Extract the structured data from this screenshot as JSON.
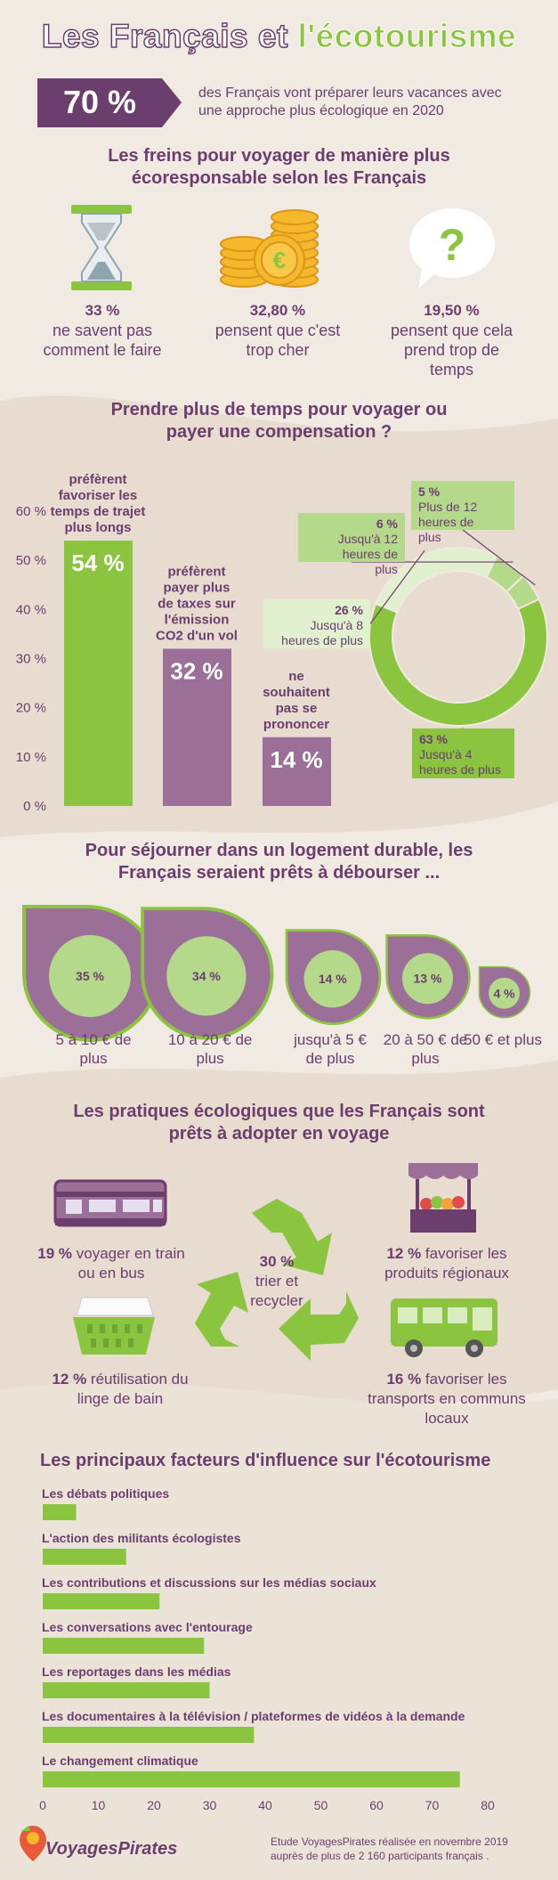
{
  "header": {
    "title_part1": "Les Français et ",
    "title_part2": "l'écotourisme",
    "stat_value": "70 %",
    "stat_text": "des Français vont préparer leurs vacances avec une approche plus écologique en 2020"
  },
  "brakes": {
    "title": "Les freins pour voyager de manière plus écoresponsable selon les Français",
    "items": [
      {
        "value": "33 %",
        "text": "ne savent pas comment le faire",
        "icon": "hourglass-icon"
      },
      {
        "value": "32,80 %",
        "text": "pensent que c'est trop cher",
        "icon": "coins-icon"
      },
      {
        "value": "19,50 %",
        "text": "pensent que cela prend trop de temps",
        "icon": "question-bubble-icon"
      }
    ]
  },
  "time": {
    "title": "Prendre plus de temps pour voyager ou payer une compensation ?"
  },
  "housing": {
    "title": "Pour séjourner dans un logement durable, les Français seraient prêts à débourser ...",
    "items": [
      {
        "value": "35 %",
        "label": "5 à 10 € de plus"
      },
      {
        "value": "34 %",
        "label": "10 à 20 € de plus"
      },
      {
        "value": "14 %",
        "label": "jusqu'à 5 € de plus"
      },
      {
        "value": "13 %",
        "label": "20 à 50 € de plus"
      },
      {
        "value": "4 %",
        "label": "50 € et plus"
      }
    ]
  },
  "practices": {
    "title": "Les pratiques écologiques que les Français sont prêts à adopter en voyage",
    "items": [
      {
        "value": "19 %",
        "text": " voyager en train ou en bus",
        "icon": "train-icon"
      },
      {
        "value": "12 %",
        "text": " favoriser les produits régionaux",
        "icon": "market-stall-icon"
      },
      {
        "value": "30 %",
        "text": "trier et recycler",
        "icon": "recycle-icon"
      },
      {
        "value": "12 %",
        "text": " réutilisation du linge de bain",
        "icon": "laundry-basket-icon"
      },
      {
        "value": "16 %",
        "text": " favoriser les transports en communs locaux",
        "icon": "bus-icon"
      }
    ]
  },
  "influence": {
    "title": "Les principaux facteurs d'influence sur l'écotourisme"
  },
  "footer": {
    "brand": "VoyagesPirates",
    "note": "Etude VoyagesPirates réalisée en novembre 2019 auprès de plus de 2 160 participants français ."
  },
  "colors": {
    "purple": "#6b3e6e",
    "purple_light": "#9c6f98",
    "green": "#8bc53f",
    "green_light": "#b4d98a",
    "green_pale": "#e1f0cf",
    "background": "#f1eae2"
  },
  "chart_data": [
    {
      "type": "bar",
      "categories": [
        "préfèrent favoriser les temps de trajet plus longs",
        "préfèrent payer plus de taxes sur l'émission CO2 d'un vol",
        "ne souhaitent pas se prononcer"
      ],
      "values": [
        54,
        32,
        14
      ],
      "value_labels": [
        "54 %",
        "32 %",
        "14 %"
      ],
      "ylim": [
        0,
        60
      ],
      "yticks": [
        "0 %",
        "10 %",
        "20 %",
        "30 %",
        "40 %",
        "50 %",
        "60 %"
      ]
    },
    {
      "type": "pie",
      "variant": "donut",
      "slices": [
        {
          "value": 63,
          "pct": "63 %",
          "label": "Jusqu'à 4 heures de plus"
        },
        {
          "value": 26,
          "pct": "26 %",
          "label": "Jusqu'à 8 heures de plus"
        },
        {
          "value": 6,
          "pct": "6 %",
          "label": "Jusqu'à 12 heures de plus"
        },
        {
          "value": 5,
          "pct": "5 %",
          "label": "Plus de 12 heures de plus"
        }
      ]
    },
    {
      "type": "bar",
      "orientation": "horizontal",
      "categories": [
        "Les débats politiques",
        "L'action des militants écologistes",
        "Les contributions et discussions sur les médias sociaux",
        "Les conversations avec l'entourage",
        "Les reportages dans les médias",
        "Les documentaires à la télévision / plateformes de vidéos à la demande",
        "Le changement climatique"
      ],
      "values": [
        6,
        15,
        21,
        29,
        30,
        38,
        75
      ],
      "xlim": [
        0,
        80
      ],
      "xticks": [
        "0",
        "10",
        "20",
        "30",
        "40",
        "50",
        "60",
        "70",
        "80"
      ]
    }
  ]
}
